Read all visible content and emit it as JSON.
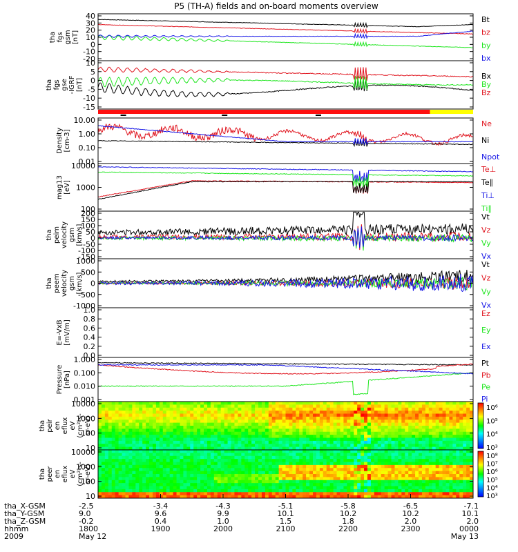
{
  "title": "P5 (TH-A) fields and on-board moments overview",
  "colors": {
    "black": "#000000",
    "red": "#e0141e",
    "green": "#1ee61e",
    "blue": "#1414e6",
    "yellow": "#ffff00",
    "darkred": "#8b0000"
  },
  "panels": [
    {
      "id": "fgs-gsm",
      "ylabel": [
        "tha",
        "fgs",
        "gsm",
        "[nT]"
      ],
      "yticks": [
        "40",
        "30",
        "20",
        "10",
        "0",
        "-10",
        "-20"
      ],
      "ylim": [
        -20,
        40
      ],
      "scale": "linear",
      "legend": [
        {
          "text": "Bt",
          "color": "#000000"
        },
        {
          "text": "bz",
          "color": "#e0141e"
        },
        {
          "text": "by",
          "color": "#1ee61e"
        },
        {
          "text": "bx",
          "color": "#1414e6"
        }
      ]
    },
    {
      "id": "fgs-gse",
      "ylabel": [
        "tha",
        "fgs",
        "gse",
        "-IGRF",
        "[nT]"
      ],
      "yticks": [
        "10",
        "5",
        "0",
        "-5",
        "-10",
        "-15"
      ],
      "ylim": [
        -18,
        10
      ],
      "scale": "linear",
      "legend": [
        {
          "text": "Bx",
          "color": "#000000"
        },
        {
          "text": "By",
          "color": "#1ee61e"
        },
        {
          "text": "Bz",
          "color": "#e0141e"
        }
      ]
    },
    {
      "id": "density",
      "ylabel": [
        "Density",
        "[cm-3]"
      ],
      "yticks": [
        "10.00",
        "1.00",
        "0.10",
        "0.01"
      ],
      "ylim": [
        0.01,
        10
      ],
      "scale": "log",
      "legend": [
        {
          "text": "Ne",
          "color": "#e0141e"
        },
        {
          "text": "Ni",
          "color": "#000000"
        },
        {
          "text": "Npot",
          "color": "#1414e6"
        }
      ]
    },
    {
      "id": "temperature",
      "ylabel": [
        "mag13",
        "[eV]"
      ],
      "yticks": [
        "10000",
        "1000",
        "100"
      ],
      "ylim": [
        30,
        15000
      ],
      "scale": "log",
      "legend": [
        {
          "text": "Te⊥",
          "color": "#e0141e"
        },
        {
          "text": "Te∥",
          "color": "#000000"
        },
        {
          "text": "Ti⊥",
          "color": "#1414e6"
        },
        {
          "text": "Ti∥",
          "color": "#1ee61e"
        }
      ]
    },
    {
      "id": "peim-velocity",
      "ylabel": [
        "tha",
        "peim",
        "velocity",
        "gsm",
        "[km/s]"
      ],
      "yticks": [
        "200",
        "150",
        "100",
        "50",
        "0",
        "-50",
        "-100",
        "-150"
      ],
      "ylim": [
        -150,
        200
      ],
      "scale": "linear",
      "legend": [
        {
          "text": "Vt",
          "color": "#000000"
        },
        {
          "text": "Vz",
          "color": "#e0141e"
        },
        {
          "text": "Vy",
          "color": "#1ee61e"
        },
        {
          "text": "Vx",
          "color": "#1414e6"
        }
      ]
    },
    {
      "id": "peem-velocity",
      "ylabel": [
        "tha",
        "peem",
        "velocity",
        "gsm",
        "[km/s]"
      ],
      "yticks": [
        "1000",
        "500",
        "0",
        "-500",
        "-1000"
      ],
      "ylim": [
        -1000,
        1000
      ],
      "scale": "linear",
      "legend": [
        {
          "text": "Vt",
          "color": "#000000"
        },
        {
          "text": "Vz",
          "color": "#e0141e"
        },
        {
          "text": "Vy",
          "color": "#1ee61e"
        },
        {
          "text": "Vx",
          "color": "#1414e6"
        }
      ]
    },
    {
      "id": "efield",
      "ylabel": [
        "E=-VxB",
        "[mV/m]"
      ],
      "yticks": [
        "1.0",
        "0.8",
        "0.6",
        "0.4",
        "0.2",
        "0.0"
      ],
      "ylim": [
        0,
        1
      ],
      "scale": "linear",
      "legend": [
        {
          "text": "Ez",
          "color": "#e0141e"
        },
        {
          "text": "Ey",
          "color": "#1ee61e"
        },
        {
          "text": "Ex",
          "color": "#1414e6"
        }
      ]
    },
    {
      "id": "pressure",
      "ylabel": [
        "Pressure",
        "[nPa]"
      ],
      "yticks": [
        "1.000",
        "0.100",
        "0.010",
        "0.001"
      ],
      "ylim": [
        0.001,
        1
      ],
      "scale": "log",
      "legend": [
        {
          "text": "Pt",
          "color": "#000000"
        },
        {
          "text": "Pb",
          "color": "#e0141e"
        },
        {
          "text": "Pe",
          "color": "#1ee61e"
        },
        {
          "text": "Pi",
          "color": "#1414e6"
        }
      ]
    },
    {
      "id": "peir-spec",
      "ylabel": [
        "tha",
        "peir",
        "en",
        "eflux",
        "eV",
        "(cm²-s-",
        "sr-eV)"
      ],
      "yticks": [
        "10000",
        "1000",
        "100",
        "10"
      ],
      "scale": "log",
      "colorbar": [
        "10⁶",
        "10⁵",
        "10⁴",
        "10³"
      ]
    },
    {
      "id": "peer-spec",
      "ylabel": [
        "tha",
        "peer",
        "en",
        "eflux",
        "eV",
        "(cm²-s-",
        "sr-eV)"
      ],
      "yticks": [
        "10000",
        "1000",
        "100",
        "10"
      ],
      "scale": "log",
      "colorbar": [
        "10⁸",
        "10⁷",
        "10⁶",
        "10⁵",
        "10⁴",
        "10³"
      ]
    }
  ],
  "xaxis": {
    "labels": [
      "tha_X-GSM",
      "tha_Y-GSM",
      "tha_Z-GSM",
      "hhmm",
      "2009"
    ],
    "columns": [
      [
        "-2.5",
        "9.0",
        "-0.2",
        "1800",
        "May 12"
      ],
      [
        "-3.4",
        "9.6",
        "0.4",
        "1900",
        ""
      ],
      [
        "-4.3",
        "9.9",
        "1.0",
        "2000",
        ""
      ],
      [
        "-5.1",
        "10.1",
        "1.5",
        "2100",
        ""
      ],
      [
        "-5.8",
        "10.2",
        "1.8",
        "2200",
        ""
      ],
      [
        "-6.5",
        "10.2",
        "2.0",
        "2300",
        ""
      ],
      [
        "-7.1",
        "10.1",
        "2.0",
        "0000",
        "May 13"
      ]
    ]
  },
  "chart_data": {
    "type": "line",
    "title": "P5 (TH-A) fields and on-board moments overview",
    "x": [
      "1800",
      "1900",
      "2000",
      "2100",
      "2200",
      "2300",
      "0000"
    ],
    "series": [
      {
        "name": "Bt",
        "values": [
          33,
          28,
          22,
          17,
          18,
          17,
          26
        ]
      },
      {
        "name": "bz",
        "values": [
          26,
          22,
          15,
          10,
          12,
          8,
          5
        ]
      },
      {
        "name": "by",
        "values": [
          11,
          8,
          4,
          0,
          -3,
          -8,
          -15
        ]
      },
      {
        "name": "bx",
        "values": [
          12,
          12,
          11,
          11,
          10,
          12,
          22
        ]
      },
      {
        "name": "Ne",
        "values": [
          2.0,
          1.0,
          0.6,
          1.0,
          0.6,
          0.4,
          0.3
        ]
      },
      {
        "name": "Ni",
        "values": [
          0.4,
          0.3,
          0.2,
          0.2,
          0.2,
          0.15,
          0.15
        ]
      },
      {
        "name": "Npot",
        "values": [
          3.0,
          0.5,
          0.2,
          0.15,
          0.2,
          0.2,
          0.2
        ]
      }
    ]
  }
}
